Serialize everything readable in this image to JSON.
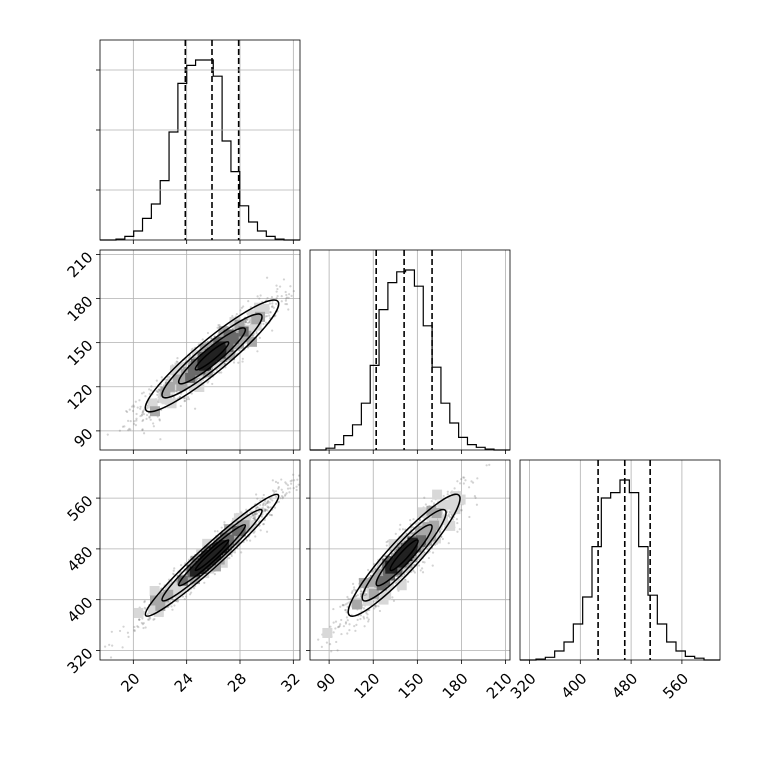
{
  "chart_data": {
    "type": "corner",
    "variables": [
      {
        "ticks": [
          20,
          24,
          28,
          32
        ],
        "range": [
          17.5,
          32.5
        ],
        "quantiles": [
          23.9,
          25.9,
          27.9
        ],
        "hist": [
          0.005,
          0.02,
          0.05,
          0.12,
          0.2,
          0.33,
          0.6,
          0.87,
          0.97,
          1.0,
          1.0,
          0.91,
          0.55,
          0.38,
          0.19,
          0.1,
          0.05,
          0.02,
          0.005
        ]
      },
      {
        "ticks": [
          90,
          120,
          150,
          180,
          210
        ],
        "range": [
          77,
          213
        ],
        "quantiles": [
          122,
          141,
          160
        ],
        "hist": [
          0.01,
          0.03,
          0.08,
          0.14,
          0.26,
          0.47,
          0.78,
          0.93,
          0.99,
          1.0,
          0.91,
          0.69,
          0.46,
          0.26,
          0.15,
          0.07,
          0.03,
          0.015,
          0.005
        ]
      },
      {
        "ticks": [
          320,
          400,
          480,
          560
        ],
        "range": [
          305,
          620
        ],
        "quantiles": [
          428,
          470,
          510
        ],
        "hist": [
          0.005,
          0.015,
          0.05,
          0.1,
          0.2,
          0.35,
          0.63,
          0.9,
          0.93,
          1.0,
          0.93,
          0.63,
          0.36,
          0.2,
          0.1,
          0.05,
          0.02,
          0.01
        ]
      }
    ],
    "pairs": [
      {
        "row": 1,
        "col": 0,
        "center": [
          25.9,
          141
        ],
        "sd": [
          2.5,
          19
        ],
        "corr": 0.93
      },
      {
        "row": 2,
        "col": 0,
        "center": [
          25.9,
          470
        ],
        "sd": [
          2.5,
          48
        ],
        "corr": 0.97
      },
      {
        "row": 2,
        "col": 1,
        "center": [
          141,
          470
        ],
        "sd": [
          19,
          48
        ],
        "corr": 0.93
      }
    ],
    "contour_levels": [
      0.5,
      1.0,
      1.5,
      2.0
    ],
    "grid": true,
    "colors": {
      "line": "#000000",
      "grid": "#b0b0b0",
      "points": "#808080"
    }
  }
}
